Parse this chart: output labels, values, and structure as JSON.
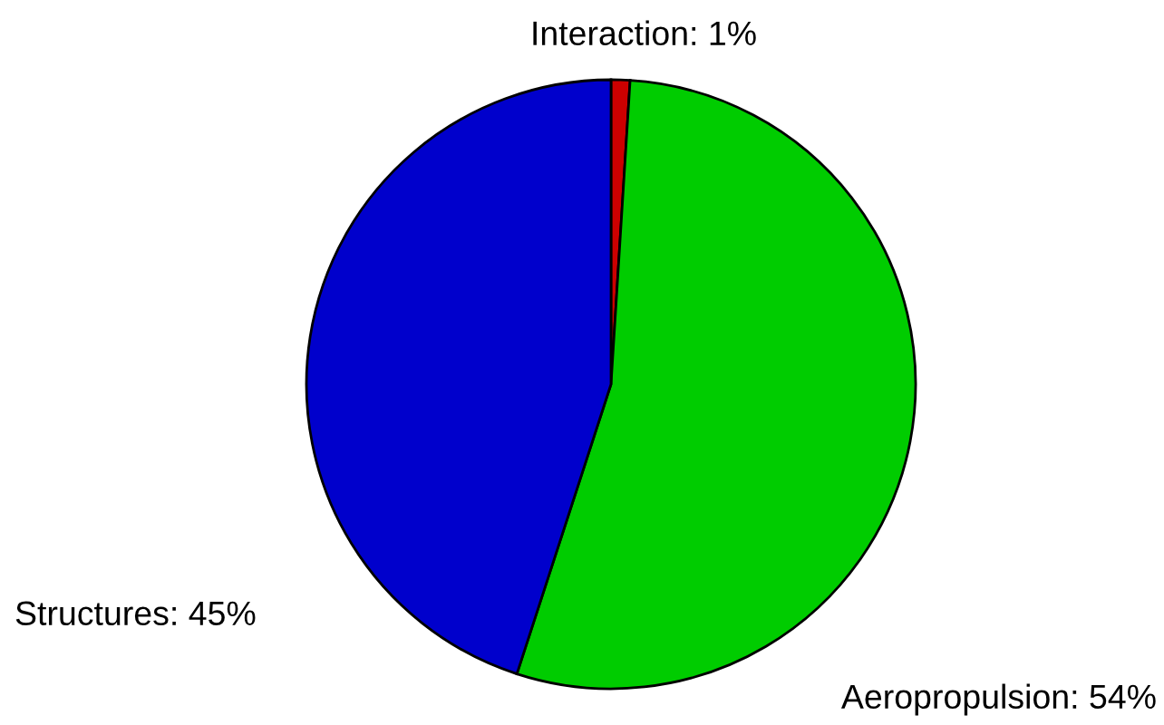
{
  "chart_data": {
    "type": "pie",
    "categories": [
      "Interaction",
      "Aeropropulsion",
      "Structures"
    ],
    "values": [
      1,
      54,
      45
    ],
    "value_labels": [
      "1%",
      "54%",
      "45%"
    ],
    "colors": [
      "#cc0000",
      "#00cc00",
      "#0000cc"
    ]
  }
}
